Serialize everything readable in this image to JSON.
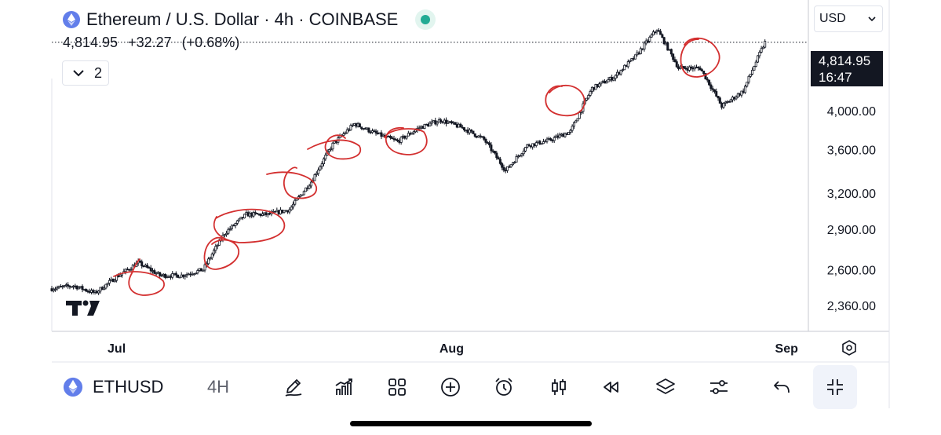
{
  "header": {
    "title": "Ethereum / U.S. Dollar · 4h · COINBASE",
    "price": "4,814.95",
    "change": "+32.27",
    "change_pct": "(+0.68%)",
    "indicators_count": "2",
    "currency": "USD",
    "live_color": "#22ab94"
  },
  "price_tag": {
    "price": "4,814.95",
    "countdown": "16:47"
  },
  "toolbar": {
    "symbol": "ETHUSD",
    "interval": "4H",
    "icons": [
      "pencil-icon",
      "chart-bars-icon",
      "grid-icon",
      "plus-circle-icon",
      "alarm-clock-icon",
      "candles-icon",
      "rewind-icon",
      "layers-icon",
      "sliders-icon",
      "undo-icon",
      "fullscreen-exit-icon"
    ]
  },
  "watermark": "TV",
  "colors": {
    "candles": "#131722",
    "annotations": "#d32f2f",
    "accent": "#22ab94"
  },
  "chart_data": {
    "type": "line",
    "title": "Ethereum / U.S. Dollar · 4h · COINBASE",
    "xlabel": "",
    "ylabel": "",
    "x_ticks": [
      "Jul",
      "Aug",
      "Sep"
    ],
    "y_ticks": [
      2360,
      2600,
      2900,
      3200,
      3600,
      4000
    ],
    "y_scale": "log",
    "ylim": [
      2200,
      5400
    ],
    "last_price": 4814.95,
    "series": [
      {
        "x": [
          "2024-06-25",
          "2024-06-27",
          "2024-06-29",
          "2024-07-01",
          "2024-07-03",
          "2024-07-05",
          "2024-07-07",
          "2024-07-09",
          "2024-07-11",
          "2024-07-13",
          "2024-07-15",
          "2024-07-17",
          "2024-07-19",
          "2024-07-21",
          "2024-07-23",
          "2024-07-25",
          "2024-07-27",
          "2024-07-29",
          "2024-07-31",
          "2024-08-02",
          "2024-08-04",
          "2024-08-06",
          "2024-08-08",
          "2024-08-10",
          "2024-08-12",
          "2024-08-14",
          "2024-08-16",
          "2024-08-18",
          "2024-08-20",
          "2024-08-22",
          "2024-08-24",
          "2024-08-26",
          "2024-08-28",
          "2024-08-30"
        ],
        "values": [
          2470,
          2490,
          2440,
          2550,
          2650,
          2560,
          2560,
          2600,
          2870,
          3020,
          3020,
          3060,
          3300,
          3650,
          3860,
          3760,
          3680,
          3820,
          3900,
          3820,
          3700,
          3400,
          3640,
          3690,
          3780,
          4250,
          4380,
          4630,
          4990,
          4490,
          4490,
          4050,
          4220,
          4815
        ]
      }
    ],
    "annotations": "hand-drawn red circles around consolidation zones",
    "grid": false,
    "legend": "none"
  }
}
